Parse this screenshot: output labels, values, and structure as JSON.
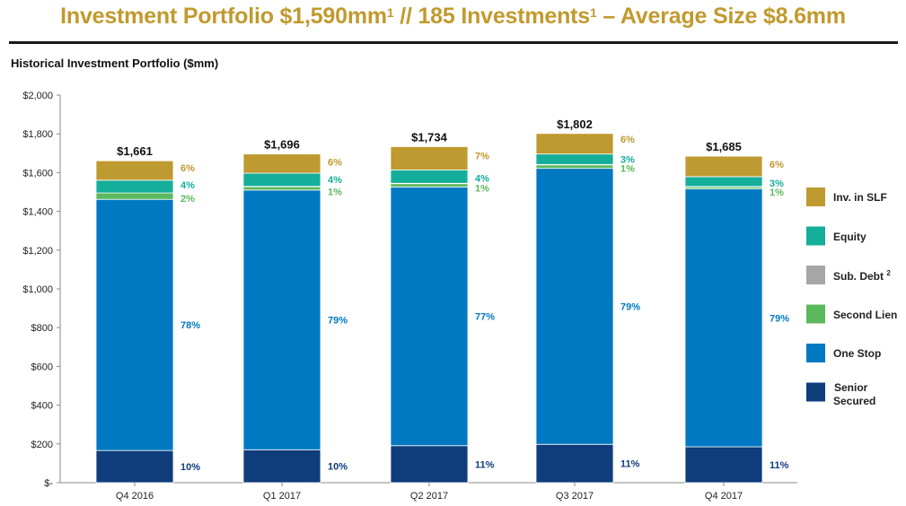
{
  "header": {
    "title_a": "Investment Portfolio $1,590mm",
    "title_sup1": "1",
    "title_b": " // 185 Investments",
    "title_sup2": "1",
    "title_c": " – Average Size $8.6mm"
  },
  "chart_data": {
    "type": "bar",
    "stacked": true,
    "title": "Historical Investment Portfolio ($mm)",
    "xlabel": "",
    "ylabel": "",
    "ylim": [
      0,
      2000
    ],
    "yticks": [
      0,
      200,
      400,
      600,
      800,
      1000,
      1200,
      1400,
      1600,
      1800,
      2000
    ],
    "ytick_labels": [
      "$-",
      "$200",
      "$400",
      "$600",
      "$800",
      "$1,000",
      "$1,200",
      "$1,400",
      "$1,600",
      "$1,800",
      "$2,000"
    ],
    "categories": [
      "Q4 2016",
      "Q1 2017",
      "Q2 2017",
      "Q3 2017",
      "Q4 2017"
    ],
    "totals": [
      "$1,661",
      "$1,696",
      "$1,734",
      "$1,802",
      "$1,685"
    ],
    "total_values": [
      1661,
      1696,
      1734,
      1802,
      1685
    ],
    "series": [
      {
        "name": "Senior Secured",
        "color": "#0F3D7C",
        "label_color": "#0F3D7C",
        "values": [
          166,
          170,
          191,
          198,
          185
        ],
        "labels": [
          "10%",
          "10%",
          "11%",
          "11%",
          "11%"
        ]
      },
      {
        "name": "One Stop",
        "color": "#0079C2",
        "label_color": "#0079C2",
        "values": [
          1296,
          1340,
          1335,
          1424,
          1331
        ],
        "labels": [
          "78%",
          "79%",
          "77%",
          "79%",
          "79%"
        ]
      },
      {
        "name": "Second Lien",
        "color": "#5CB85C",
        "label_color": "#5CB85C",
        "values": [
          33,
          17,
          17,
          18,
          10
        ],
        "labels": [
          "2%",
          "1%",
          "1%",
          "1%",
          "1%"
        ]
      },
      {
        "name": "Sub. Debt",
        "color": "#A6A6A6",
        "label_color": "#A6A6A6",
        "values": [
          0,
          2,
          2,
          2,
          2
        ],
        "labels": [
          "",
          "",
          "",
          "",
          ""
        ]
      },
      {
        "name": "Equity",
        "color": "#14AE9A",
        "label_color": "#14AE9A",
        "values": [
          66,
          68,
          69,
          54,
          51
        ],
        "labels": [
          "4%",
          "4%",
          "4%",
          "3%",
          "3%"
        ]
      },
      {
        "name": "Inv. in SLF",
        "color": "#BE9A30",
        "label_color": "#BE9A30",
        "values": [
          100,
          99,
          120,
          106,
          106
        ],
        "labels": [
          "6%",
          "6%",
          "7%",
          "6%",
          "6%"
        ]
      }
    ],
    "legend": {
      "position": "right",
      "entries": [
        {
          "name": "Inv. in SLF",
          "sup": "",
          "color": "#BE9A30"
        },
        {
          "name": "Equity",
          "sup": "",
          "color": "#14AE9A"
        },
        {
          "name": "Sub. Debt ",
          "sup": "2",
          "color": "#A6A6A6"
        },
        {
          "name": "Second Lien",
          "sup": "",
          "color": "#5CB85C"
        },
        {
          "name": "One Stop",
          "sup": "",
          "color": "#0079C2"
        },
        {
          "name": "Senior Secured",
          "sup": "",
          "color": "#0F3D7C"
        }
      ]
    }
  }
}
